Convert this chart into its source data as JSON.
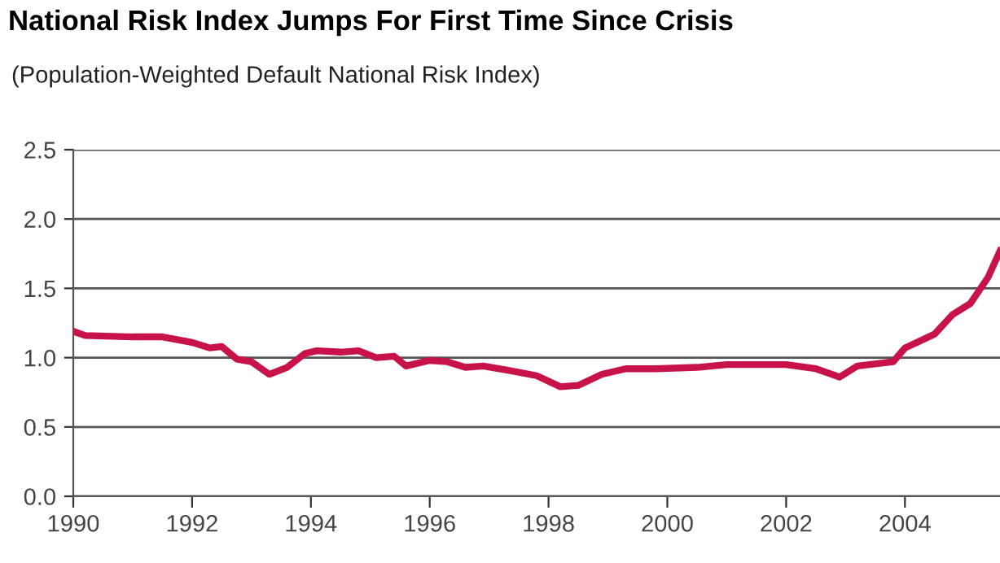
{
  "chart_data": {
    "type": "line",
    "title": "National Risk Index Jumps For First Time Since Crisis",
    "subtitle": "(Population-Weighted Default National Risk Index)",
    "x": [
      1990.0,
      1990.2,
      1991.0,
      1991.5,
      1992.0,
      1992.3,
      1992.5,
      1992.75,
      1993.0,
      1993.3,
      1993.6,
      1993.9,
      1994.1,
      1994.5,
      1994.8,
      1995.1,
      1995.4,
      1995.6,
      1996.0,
      1996.3,
      1996.6,
      1996.9,
      1997.3,
      1997.8,
      1998.2,
      1998.5,
      1998.9,
      1999.3,
      1999.8,
      2000.5,
      2001.0,
      2002.0,
      2002.5,
      2002.9,
      2003.2,
      2003.8,
      2004.0,
      2004.5,
      2004.8,
      2005.1,
      2005.4,
      2005.6
    ],
    "series": [
      {
        "color": "#c8124a",
        "values": [
          1.19,
          1.16,
          1.15,
          1.15,
          1.11,
          1.07,
          1.08,
          0.99,
          0.97,
          0.88,
          0.93,
          1.03,
          1.05,
          1.04,
          1.05,
          1.0,
          1.01,
          0.94,
          0.98,
          0.97,
          0.93,
          0.94,
          0.91,
          0.87,
          0.79,
          0.8,
          0.88,
          0.92,
          0.92,
          0.93,
          0.95,
          0.95,
          0.92,
          0.86,
          0.94,
          0.97,
          1.07,
          1.17,
          1.31,
          1.39,
          1.58,
          1.77
        ]
      }
    ],
    "xlim": [
      1990,
      2005.6
    ],
    "xticks": [
      1990,
      1992,
      1994,
      1996,
      1998,
      2000,
      2002,
      2004
    ],
    "ylim": [
      0,
      2.5
    ],
    "yticks": [
      {
        "value": 0,
        "label": "0.0"
      },
      {
        "value": 0.5,
        "label": "0.5"
      },
      {
        "value": 1,
        "label": "1.0"
      },
      {
        "value": 1.5,
        "label": "1.5"
      },
      {
        "value": 2,
        "label": "2.0"
      },
      {
        "value": 2.5,
        "label": "2.5"
      }
    ],
    "grid": "y",
    "marker": "none",
    "line_style": "solid"
  }
}
